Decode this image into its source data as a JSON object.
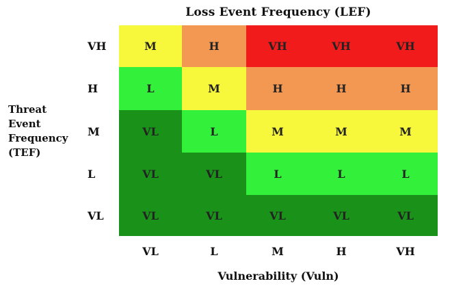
{
  "top_title": "Loss Event Frequency (LEF)",
  "left_title": [
    "Threat",
    "Event",
    "Frequency",
    "(TEF)"
  ],
  "bottom_title": "Vulnerability (Vuln)",
  "row_labels": [
    "VH",
    "H",
    "M",
    "L",
    "VL"
  ],
  "col_labels": [
    "VL",
    "L",
    "M",
    "H",
    "VH"
  ],
  "colors": {
    "VL": "#1a921a",
    "L": "#33f13a",
    "M": "#f7f73b",
    "H": "#f39853",
    "VH": "#f21b1b"
  },
  "matrix": [
    [
      "M",
      "H",
      "VH",
      "VH",
      "VH"
    ],
    [
      "L",
      "M",
      "H",
      "H",
      "H"
    ],
    [
      "VL",
      "L",
      "M",
      "M",
      "M"
    ],
    [
      "VL",
      "VL",
      "L",
      "L",
      "L"
    ],
    [
      "VL",
      "VL",
      "VL",
      "VL",
      "VL"
    ]
  ]
}
